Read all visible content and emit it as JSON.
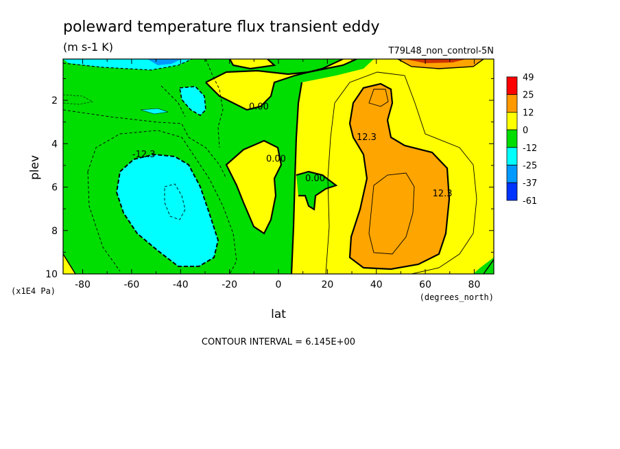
{
  "chart_data": {
    "type": "contour",
    "title": "poleward temperature flux transient eddy",
    "units": "(m s-1 K)",
    "dataset": "T79L48_non_control-5N",
    "xlabel": "lat",
    "xunits": "(degrees_north)",
    "ylabel": "plev",
    "yunits": "(x1E4 Pa)",
    "xlim": [
      -88,
      88
    ],
    "ylim": [
      10,
      0.1
    ],
    "x_ticks": [
      -80,
      -60,
      -40,
      -20,
      0,
      20,
      40,
      60,
      80
    ],
    "x_tick_labels": [
      "-80",
      "-60",
      "-40",
      "-20",
      "0",
      "20",
      "40",
      "60",
      "80"
    ],
    "y_ticks": [
      2,
      4,
      6,
      8,
      10
    ],
    "y_tick_labels": [
      "2",
      "4",
      "6",
      "8",
      "10"
    ],
    "contour_interval_text": "CONTOUR INTERVAL = 6.145E+00",
    "contour_labels": [
      {
        "text": "0.00",
        "lat": -8,
        "plev": 2.3
      },
      {
        "text": "0.00",
        "lat": -1,
        "plev": 4.7
      },
      {
        "text": "0.00",
        "lat": 15,
        "plev": 5.6
      },
      {
        "text": "-12.3",
        "lat": -55,
        "plev": 4.5
      },
      {
        "text": "12.3",
        "lat": 36,
        "plev": 3.7
      },
      {
        "text": "12.3",
        "lat": 67,
        "plev": 6.3
      }
    ],
    "legend": {
      "levels": [
        "49",
        "25",
        "12",
        "0",
        "-12",
        "-25",
        "-37",
        "-61"
      ],
      "colors": [
        "#ff0000",
        "#ff9900",
        "#ffff00",
        "#00dd00",
        "#00ffff",
        "#0099ff",
        "#0033ff"
      ]
    },
    "colors": {
      "green": "#00dd00",
      "yellow": "#ffff00",
      "orange": "#ffa500",
      "cyan": "#00ffff",
      "blue": "#0099ff",
      "red": "#ff0000"
    }
  }
}
